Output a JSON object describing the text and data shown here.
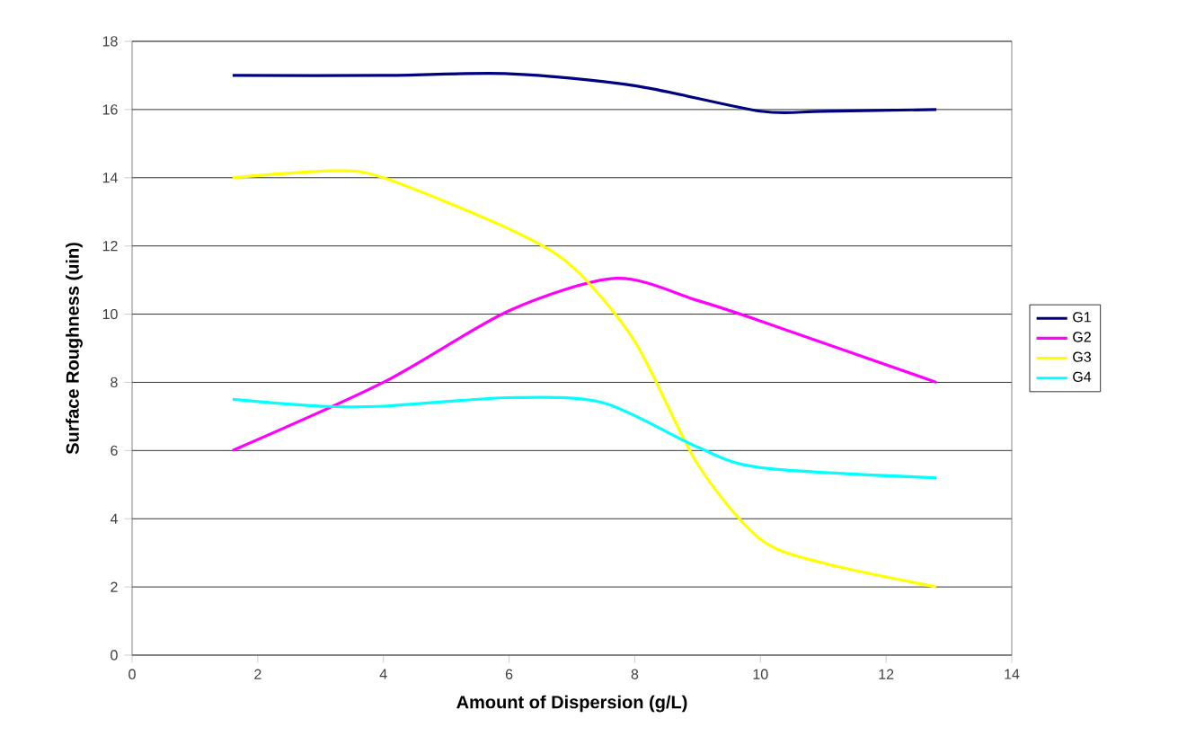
{
  "chart_data": {
    "type": "line",
    "xlabel": "Amount of Dispersion (g/L)",
    "ylabel": "Surface Roughness (uin)",
    "xlim": [
      0,
      14
    ],
    "xticks": [
      0,
      2,
      4,
      6,
      8,
      10,
      12,
      14
    ],
    "ylim": [
      0,
      18
    ],
    "yticks": [
      0,
      2,
      4,
      6,
      8,
      10,
      12,
      14,
      16,
      18
    ],
    "grid": "y",
    "legend": "right",
    "marker": "none",
    "line_style": "solid",
    "series": [
      {
        "name": "G1",
        "color": "#000080",
        "x": [
          1.6,
          4,
          6,
          8,
          10,
          11,
          12.8
        ],
        "values": [
          17,
          17,
          17.05,
          16.7,
          15.95,
          15.95,
          16
        ]
      },
      {
        "name": "G2",
        "color": "#ff00ff",
        "x": [
          1.6,
          4,
          6,
          7.7,
          9,
          10,
          12.8
        ],
        "values": [
          6,
          8,
          10.1,
          11.05,
          10.4,
          9.8,
          8
        ]
      },
      {
        "name": "G3",
        "color": "#ffff00",
        "x": [
          1.6,
          3.2,
          4,
          6,
          7,
          8,
          9,
          10,
          11,
          12.8
        ],
        "values": [
          14,
          14.2,
          14,
          12.5,
          11.4,
          9.2,
          5.6,
          3.4,
          2.7,
          2
        ]
      },
      {
        "name": "G4",
        "color": "#00ffff",
        "x": [
          1.6,
          3,
          4,
          6,
          7.5,
          9,
          10,
          12.8
        ],
        "values": [
          7.5,
          7.3,
          7.3,
          7.55,
          7.4,
          6.1,
          5.5,
          5.2
        ]
      }
    ]
  }
}
